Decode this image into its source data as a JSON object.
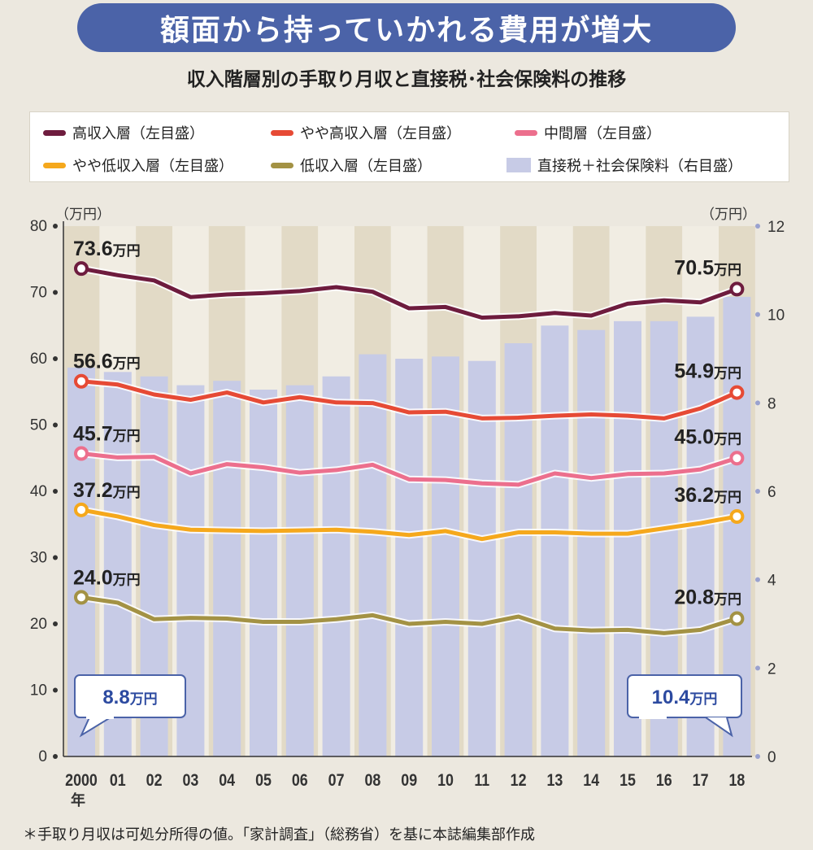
{
  "header": {
    "title": "額面から持っていかれる費用が増大",
    "subtitle": "収入階層別の手取り月収と直接税･社会保険料の推移"
  },
  "legend": {
    "items": [
      {
        "label": "高収入層（左目盛）",
        "color": "#6e1c3e",
        "kind": "line"
      },
      {
        "label": "やや高収入層（左目盛）",
        "color": "#e64a35",
        "kind": "line"
      },
      {
        "label": "中間層（左目盛）",
        "color": "#ec6f8d",
        "kind": "line"
      },
      {
        "label": "やや低収入層（左目盛）",
        "color": "#f5a81c",
        "kind": "line"
      },
      {
        "label": "低収入層（左目盛）",
        "color": "#a39244",
        "kind": "line"
      },
      {
        "label": "直接税＋社会保険料（右目盛）",
        "color": "#c7cbe6",
        "kind": "bar"
      }
    ]
  },
  "axis_units": {
    "left": "（万円）",
    "right": "（万円）"
  },
  "callouts": {
    "left_value": "8.8",
    "right_value": "10.4",
    "unit": "万円"
  },
  "footnote": "＊手取り月収は可処分所得の値。「家計調査」（総務省）を基に本誌編集部作成",
  "chart_data": {
    "type": "line",
    "categories": [
      "2000",
      "01",
      "02",
      "03",
      "04",
      "05",
      "06",
      "07",
      "08",
      "09",
      "10",
      "11",
      "12",
      "13",
      "14",
      "15",
      "16",
      "17",
      "18"
    ],
    "first_category_suffix": "年",
    "ylim_left": [
      0,
      80
    ],
    "yticks_left": [
      "0",
      "10",
      "20",
      "30",
      "40",
      "50",
      "60",
      "70",
      "80"
    ],
    "ylim_right": [
      0,
      12
    ],
    "yticks_right": [
      "0",
      "2",
      "4",
      "6",
      "8",
      "10",
      "12"
    ],
    "grid": false,
    "legend_position": "top",
    "bars": {
      "name": "直接税＋社会保険料（右目盛）",
      "color": "#c7cbe6",
      "values": [
        8.8,
        8.7,
        8.6,
        8.4,
        8.5,
        8.3,
        8.4,
        8.6,
        9.1,
        9.0,
        9.05,
        8.95,
        9.35,
        9.75,
        9.65,
        9.85,
        9.85,
        9.95,
        10.4
      ]
    },
    "series": [
      {
        "name": "高収入層（左目盛）",
        "color": "#6e1c3e",
        "values": [
          73.6,
          72.6,
          71.8,
          69.3,
          69.7,
          69.9,
          70.2,
          70.8,
          70.1,
          67.6,
          67.8,
          66.2,
          66.4,
          66.9,
          66.5,
          68.3,
          68.8,
          68.5,
          70.5
        ],
        "end_labels": [
          "73.6",
          "70.5"
        ],
        "label_unit": "万円"
      },
      {
        "name": "やや高収入層（左目盛）",
        "color": "#e64a35",
        "values": [
          56.6,
          56.1,
          54.6,
          53.8,
          54.9,
          53.4,
          54.2,
          53.4,
          53.3,
          51.9,
          52.0,
          51.0,
          51.1,
          51.4,
          51.6,
          51.4,
          51.0,
          52.5,
          54.9
        ],
        "end_labels": [
          "56.6",
          "54.9"
        ],
        "label_unit": "万円"
      },
      {
        "name": "中間層（左目盛）",
        "color": "#ec6f8d",
        "values": [
          45.7,
          45.1,
          45.2,
          42.7,
          44.1,
          43.6,
          42.8,
          43.2,
          44.0,
          41.8,
          41.7,
          41.2,
          41.0,
          42.7,
          42.0,
          42.6,
          42.7,
          43.3,
          45.0
        ],
        "end_labels": [
          "45.7",
          "45.0"
        ],
        "label_unit": "万円"
      },
      {
        "name": "やや低収入層（左目盛）",
        "color": "#f5a81c",
        "values": [
          37.2,
          36.2,
          34.9,
          34.2,
          34.1,
          34.0,
          34.1,
          34.2,
          33.9,
          33.4,
          34.0,
          32.8,
          33.8,
          33.8,
          33.6,
          33.6,
          34.4,
          35.2,
          36.2
        ],
        "end_labels": [
          "37.2",
          "36.2"
        ],
        "label_unit": "万円"
      },
      {
        "name": "低収入層（左目盛）",
        "color": "#a39244",
        "values": [
          24.0,
          23.2,
          20.7,
          20.9,
          20.8,
          20.3,
          20.3,
          20.7,
          21.3,
          20.0,
          20.3,
          20.0,
          21.1,
          19.3,
          19.0,
          19.1,
          18.6,
          19.1,
          20.8
        ],
        "end_labels": [
          "24.0",
          "20.8"
        ],
        "label_unit": "万円"
      }
    ]
  }
}
